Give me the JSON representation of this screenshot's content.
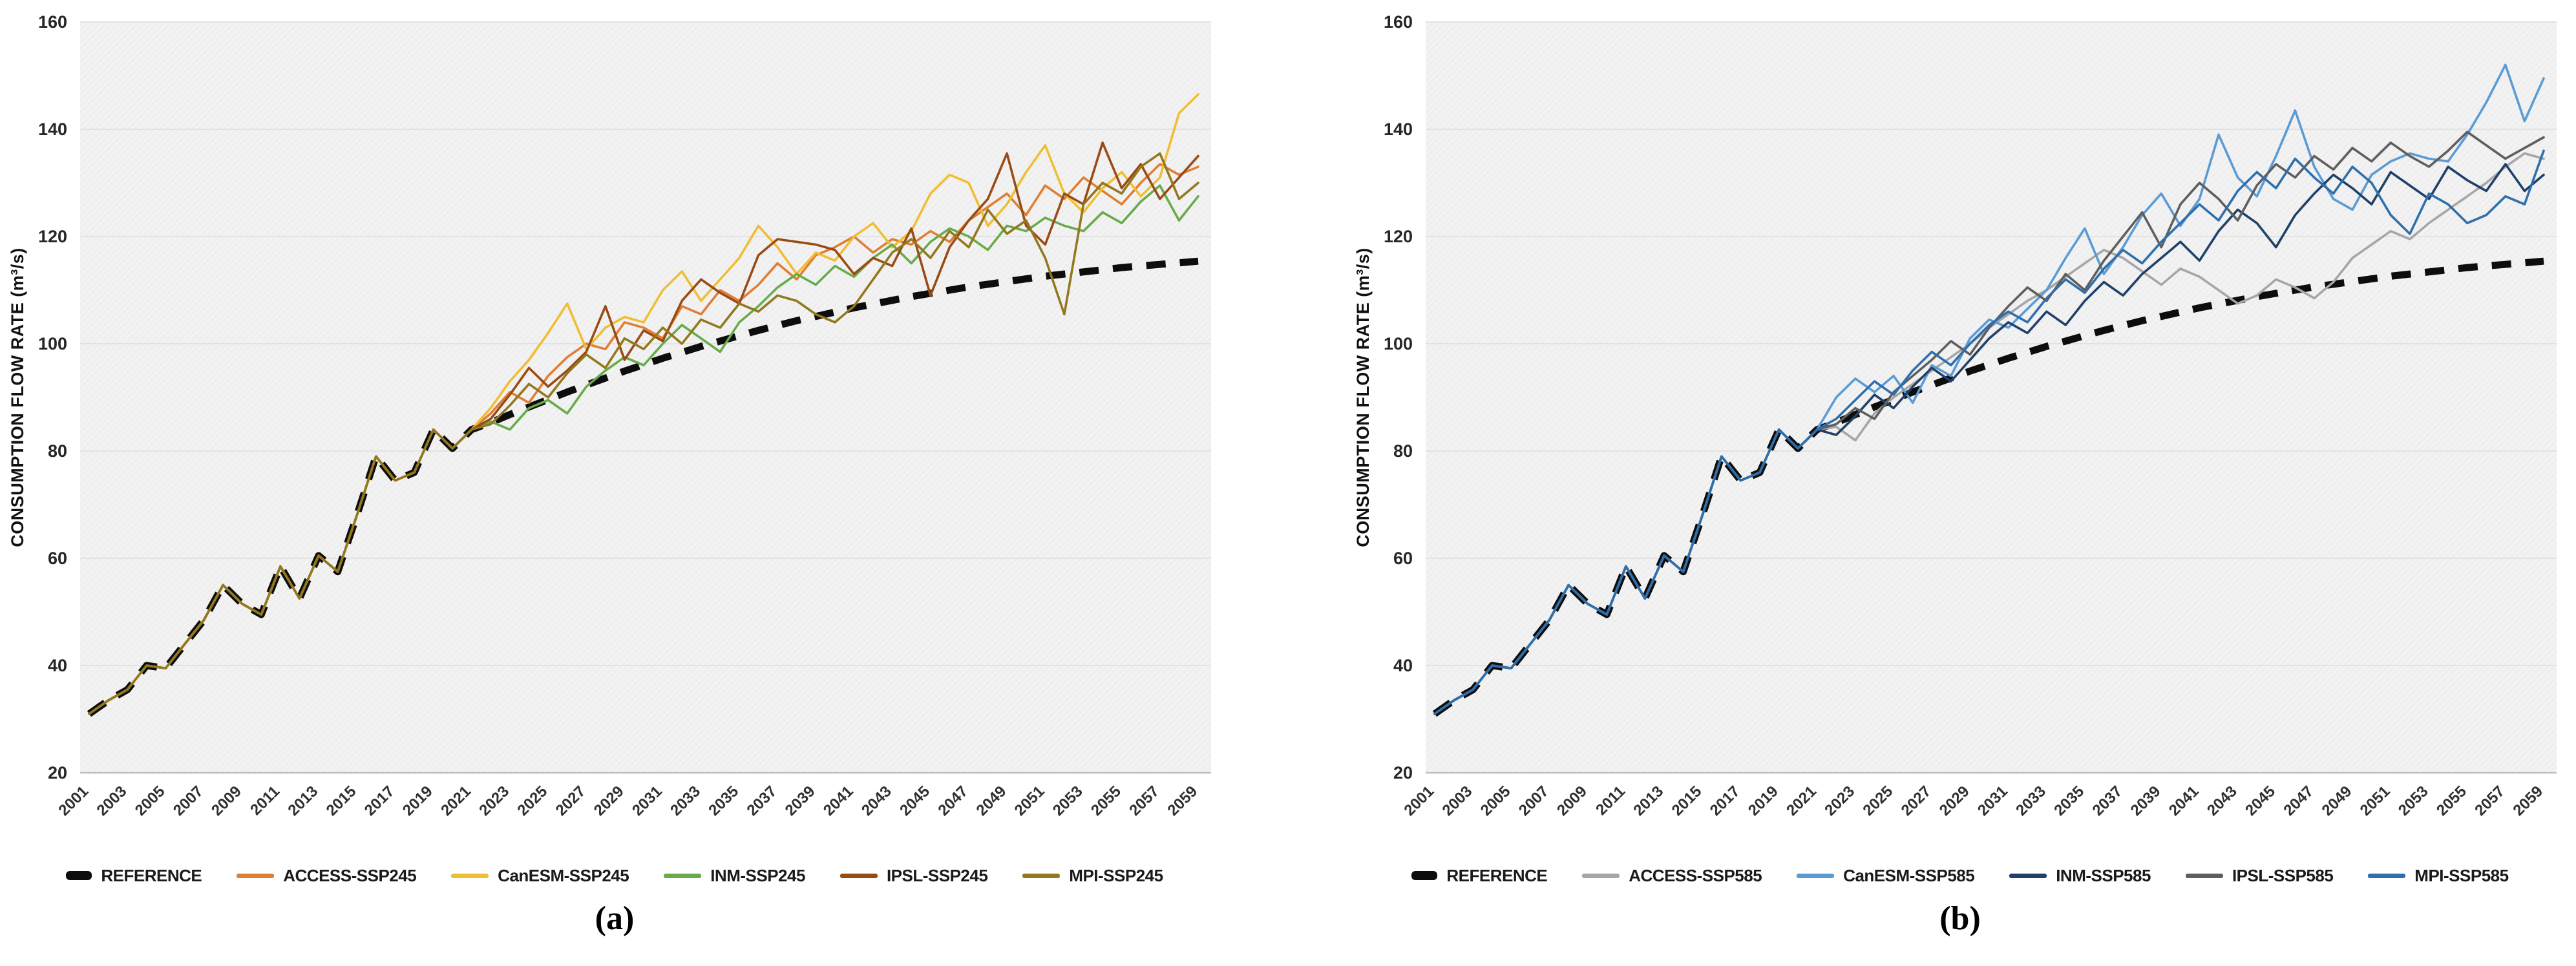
{
  "figure": {
    "y_axis_label": "CONSUMPTION FLOW RATE (m³/s)",
    "y_ticks": [
      20,
      40,
      60,
      80,
      100,
      120,
      140,
      160
    ],
    "x_tick_years": [
      2001,
      2003,
      2005,
      2007,
      2009,
      2011,
      2013,
      2015,
      2017,
      2019,
      2021,
      2023,
      2025,
      2027,
      2029,
      2031,
      2033,
      2035,
      2037,
      2039,
      2041,
      2043,
      2045,
      2047,
      2049,
      2051,
      2053,
      2055,
      2057,
      2059
    ],
    "grid_color": "#e2e2e2",
    "plot_bg_color": "#efefef",
    "axis_line_color": "#c0c0c0",
    "tick_text_color": "#262626",
    "reference_color": "#0d0d0d"
  },
  "chart_data": [
    {
      "type": "line",
      "caption": "(a)",
      "ylabel": "CONSUMPTION FLOW RATE (m³/s)",
      "ylim": [
        20,
        160
      ],
      "x": [
        2001,
        2002,
        2003,
        2004,
        2005,
        2006,
        2007,
        2008,
        2009,
        2010,
        2011,
        2012,
        2013,
        2014,
        2015,
        2016,
        2017,
        2018,
        2019,
        2020,
        2021,
        2022,
        2023,
        2024,
        2025,
        2026,
        2027,
        2028,
        2029,
        2030,
        2031,
        2032,
        2033,
        2034,
        2035,
        2036,
        2037,
        2038,
        2039,
        2040,
        2041,
        2042,
        2043,
        2044,
        2045,
        2046,
        2047,
        2048,
        2049,
        2050,
        2051,
        2052,
        2053,
        2054,
        2055,
        2056,
        2057,
        2058,
        2059
      ],
      "series": [
        {
          "name": "REFERENCE",
          "color": "#0d0d0d",
          "dash": true,
          "values": [
            31,
            33.5,
            35.5,
            40,
            39.5,
            44,
            48.5,
            55,
            51.5,
            49.5,
            58.5,
            52.5,
            60.5,
            57.5,
            68,
            79,
            74.5,
            76,
            84,
            80.5,
            84,
            85.3,
            86.8,
            88.2,
            89.6,
            91,
            92.3,
            93.6,
            94.9,
            96.1,
            97.3,
            98.4,
            99.5,
            100.5,
            101.5,
            102.5,
            103.4,
            104.3,
            105.1,
            105.9,
            106.7,
            107.4,
            108.1,
            108.8,
            109.4,
            110,
            110.6,
            111.1,
            111.6,
            112.1,
            112.6,
            113,
            113.4,
            113.8,
            114.2,
            114.5,
            114.8,
            115.1,
            115.4
          ]
        },
        {
          "name": "ACCESS-SSP245",
          "color": "#E07E35",
          "dash": false,
          "values": [
            31,
            33.5,
            35.5,
            40,
            39.5,
            44,
            48.5,
            55,
            51.5,
            49.5,
            58.5,
            52.5,
            60.5,
            57.5,
            68,
            79,
            74.5,
            76,
            84,
            80.5,
            84,
            87,
            91,
            89,
            94,
            97.5,
            100,
            99,
            104,
            103,
            101,
            107,
            105.5,
            110,
            108,
            111,
            115,
            112,
            116.5,
            118,
            120,
            117,
            119.5,
            118.5,
            121,
            119,
            123,
            125.5,
            128,
            124,
            129.5,
            127,
            131,
            128.5,
            126,
            130,
            133.5,
            131.5,
            133
          ]
        },
        {
          "name": "CanESM-SSP245",
          "color": "#F0BE33",
          "dash": false,
          "values": [
            31,
            33.5,
            35.5,
            40,
            39.5,
            44,
            48.5,
            55,
            51.5,
            49.5,
            58.5,
            52.5,
            60.5,
            57.5,
            68,
            79,
            74.5,
            76,
            84,
            80.5,
            84,
            88,
            93,
            97,
            102,
            107.5,
            99,
            103,
            105,
            104,
            110,
            113.5,
            108,
            112,
            116,
            122,
            118,
            113,
            117,
            115.5,
            120,
            122.5,
            118,
            121,
            128,
            131.5,
            130,
            122,
            126,
            132,
            137,
            128,
            124.5,
            129,
            132,
            127.5,
            131,
            143,
            146.5
          ]
        },
        {
          "name": "INM-SSP245",
          "color": "#67AC49",
          "dash": false,
          "values": [
            31,
            33.5,
            35.5,
            40,
            39.5,
            44,
            48.5,
            55,
            51.5,
            49.5,
            58.5,
            52.5,
            60.5,
            57.5,
            68,
            79,
            74.5,
            76,
            84,
            80.5,
            84,
            85.5,
            84,
            88,
            89.5,
            87,
            92,
            95,
            97.5,
            96,
            100,
            103.5,
            101,
            98.5,
            104,
            107,
            110.5,
            113,
            111,
            114.5,
            112.5,
            116,
            118.5,
            115,
            119,
            121.5,
            120,
            117.5,
            122,
            121,
            123.5,
            122,
            121,
            124.5,
            122.5,
            126.5,
            129.5,
            123,
            127.5
          ]
        },
        {
          "name": "IPSL-SSP245",
          "color": "#9A4B14",
          "dash": false,
          "values": [
            31,
            33.5,
            35.5,
            40,
            39.5,
            44,
            48.5,
            55,
            51.5,
            49.5,
            58.5,
            52.5,
            60.5,
            57.5,
            68,
            79,
            74.5,
            76,
            84,
            80.5,
            84,
            86,
            90.5,
            95.5,
            92,
            95,
            98.5,
            107,
            97,
            102.5,
            100.5,
            108,
            112,
            109.5,
            107.5,
            116.5,
            119.5,
            119,
            118.5,
            117.5,
            113,
            116,
            114.5,
            121.5,
            109,
            118,
            123,
            127,
            135.5,
            122,
            118.5,
            128,
            126,
            137.5,
            129,
            133.5,
            127,
            131,
            135
          ]
        },
        {
          "name": "MPI-SSP245",
          "color": "#93781D",
          "dash": false,
          "values": [
            31,
            33.5,
            35.5,
            40,
            39.5,
            44,
            48.5,
            55,
            51.5,
            49.5,
            58.5,
            52.5,
            60.5,
            57.5,
            68,
            79,
            74.5,
            76,
            84,
            80.5,
            84,
            85,
            88.5,
            92.5,
            90,
            94.5,
            98,
            95.5,
            101,
            99,
            103,
            100,
            104.5,
            103,
            107.5,
            106,
            109,
            108,
            105.5,
            104,
            107,
            112,
            117,
            119.5,
            116,
            121,
            118,
            125,
            120.5,
            123,
            116,
            105.5,
            126,
            130,
            128,
            133,
            135.5,
            127,
            130
          ]
        }
      ]
    },
    {
      "type": "line",
      "caption": "(b)",
      "ylabel": "CONSUMPTION FLOW RATE (m³/s)",
      "ylim": [
        20,
        160
      ],
      "x": [
        2001,
        2002,
        2003,
        2004,
        2005,
        2006,
        2007,
        2008,
        2009,
        2010,
        2011,
        2012,
        2013,
        2014,
        2015,
        2016,
        2017,
        2018,
        2019,
        2020,
        2021,
        2022,
        2023,
        2024,
        2025,
        2026,
        2027,
        2028,
        2029,
        2030,
        2031,
        2032,
        2033,
        2034,
        2035,
        2036,
        2037,
        2038,
        2039,
        2040,
        2041,
        2042,
        2043,
        2044,
        2045,
        2046,
        2047,
        2048,
        2049,
        2050,
        2051,
        2052,
        2053,
        2054,
        2055,
        2056,
        2057,
        2058,
        2059
      ],
      "series": [
        {
          "name": "REFERENCE",
          "color": "#0d0d0d",
          "dash": true,
          "values": [
            31,
            33.5,
            35.5,
            40,
            39.5,
            44,
            48.5,
            55,
            51.5,
            49.5,
            58.5,
            52.5,
            60.5,
            57.5,
            68,
            79,
            74.5,
            76,
            84,
            80.5,
            84,
            85.3,
            86.8,
            88.2,
            89.6,
            91,
            92.3,
            93.6,
            94.9,
            96.1,
            97.3,
            98.4,
            99.5,
            100.5,
            101.5,
            102.5,
            103.4,
            104.3,
            105.1,
            105.9,
            106.7,
            107.4,
            108.1,
            108.8,
            109.4,
            110,
            110.6,
            111.1,
            111.6,
            112.1,
            112.6,
            113,
            113.4,
            113.8,
            114.2,
            114.5,
            114.8,
            115.1,
            115.4
          ]
        },
        {
          "name": "ACCESS-SSP585",
          "color": "#A6A6A6",
          "dash": false,
          "values": [
            31,
            33.5,
            35.5,
            40,
            39.5,
            44,
            48.5,
            55,
            51.5,
            49.5,
            58.5,
            52.5,
            60.5,
            57.5,
            68,
            79,
            74.5,
            76,
            84,
            80.5,
            84,
            84.5,
            82,
            87,
            90,
            92.5,
            95,
            97.5,
            100,
            103,
            105.5,
            108,
            110,
            112.5,
            115,
            117.5,
            116,
            113.5,
            111,
            114,
            112.5,
            110,
            107.5,
            109,
            112,
            110.5,
            108.5,
            111.5,
            116,
            118.5,
            121,
            119.5,
            122.5,
            125,
            127.5,
            130,
            133,
            135.5,
            134.5
          ]
        },
        {
          "name": "CanESM-SSP585",
          "color": "#5B9BD5",
          "dash": false,
          "values": [
            31,
            33.5,
            35.5,
            40,
            39.5,
            44,
            48.5,
            55,
            51.5,
            49.5,
            58.5,
            52.5,
            60.5,
            57.5,
            68,
            79,
            74.5,
            76,
            84,
            80.5,
            84,
            90,
            93.5,
            91,
            94,
            89,
            96,
            94,
            101,
            104.5,
            103,
            106.5,
            110,
            116,
            121.5,
            113,
            118,
            124,
            128,
            122,
            127,
            139,
            131,
            127.5,
            135,
            143.5,
            133,
            127,
            125,
            131.5,
            134,
            135.5,
            134.5,
            134,
            139,
            145,
            152,
            141.5,
            149.5
          ]
        },
        {
          "name": "INM-SSP585",
          "color": "#1F4068",
          "dash": false,
          "values": [
            31,
            33.5,
            35.5,
            40,
            39.5,
            44,
            48.5,
            55,
            51.5,
            49.5,
            58.5,
            52.5,
            60.5,
            57.5,
            68,
            79,
            74.5,
            76,
            84,
            80.5,
            84,
            83,
            86.5,
            90.5,
            88,
            92,
            95.5,
            93,
            97,
            101,
            104,
            102,
            106,
            103.5,
            108,
            111.5,
            109,
            113,
            116,
            119,
            115.5,
            121,
            125,
            122.5,
            118,
            124,
            128,
            131.5,
            129,
            126,
            132,
            129.5,
            127,
            133,
            130.5,
            128.5,
            133.5,
            128.5,
            131.5
          ]
        },
        {
          "name": "IPSL-SSP585",
          "color": "#5E5E5E",
          "dash": false,
          "values": [
            31,
            33.5,
            35.5,
            40,
            39.5,
            44,
            48.5,
            55,
            51.5,
            49.5,
            58.5,
            52.5,
            60.5,
            57.5,
            68,
            79,
            74.5,
            76,
            84,
            80.5,
            84,
            85,
            88,
            86,
            91,
            94,
            97,
            100.5,
            98,
            103,
            107,
            110.5,
            108,
            113,
            110,
            115.5,
            120,
            124.5,
            118,
            126,
            130,
            127,
            123,
            129.5,
            133.5,
            131,
            135,
            132.5,
            136.5,
            134,
            137.5,
            135,
            133,
            136,
            139.5,
            137,
            134.5,
            136.5,
            138.5
          ]
        },
        {
          "name": "MPI-SSP585",
          "color": "#2E6FAC",
          "dash": false,
          "values": [
            31,
            33.5,
            35.5,
            40,
            39.5,
            44,
            48.5,
            55,
            51.5,
            49.5,
            58.5,
            52.5,
            60.5,
            57.5,
            68,
            79,
            74.5,
            76,
            84,
            80.5,
            84,
            86,
            89.5,
            93,
            90.5,
            95,
            98.5,
            96,
            100,
            103.5,
            106,
            104,
            108.5,
            112,
            109.5,
            114,
            117.5,
            115,
            119,
            122.5,
            126,
            123,
            128.5,
            132,
            129,
            134.5,
            131,
            128,
            133,
            130,
            124,
            120.5,
            128,
            126,
            122.5,
            124,
            127.5,
            126,
            136
          ]
        }
      ]
    }
  ]
}
